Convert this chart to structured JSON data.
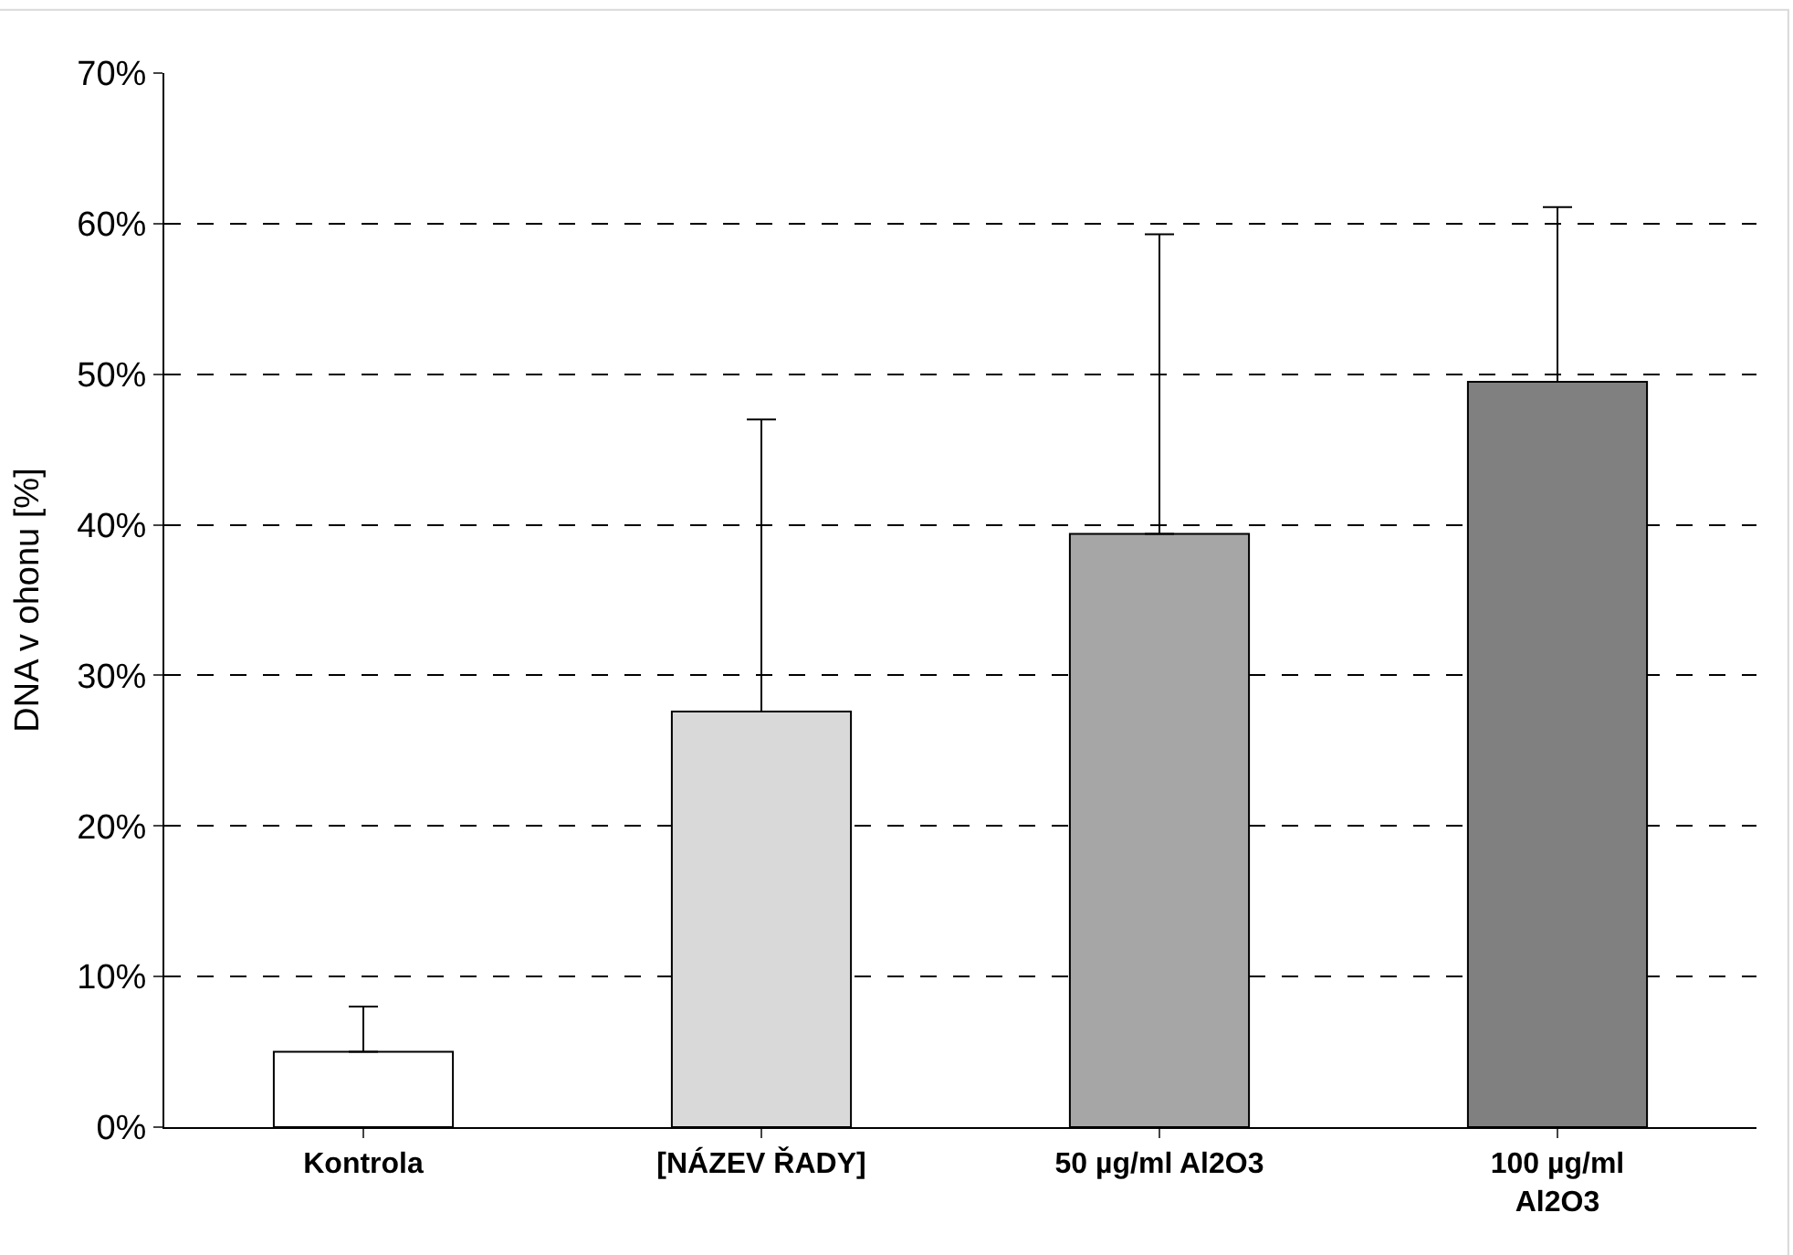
{
  "chart_data": {
    "type": "bar",
    "ylabel": "DNA v ohonu [%]",
    "categories": [
      "Kontrola",
      "[NÁZEV ŘADY]",
      "50 µg/ml Al2O3",
      "100 µg/ml\nAl2O3"
    ],
    "values": [
      5,
      27.6,
      39.4,
      49.5
    ],
    "colors": [
      "#ffffff",
      "#d9d9d9",
      "#a6a6a6",
      "#808080"
    ],
    "errors": [
      [
        5,
        8
      ],
      [
        27.6,
        47
      ],
      [
        39.4,
        59.3
      ],
      [
        49.5,
        61.1
      ]
    ],
    "ylim": [
      0,
      70
    ],
    "yticks": [
      {
        "value": 0,
        "label": "0%"
      },
      {
        "value": 10,
        "label": "10%"
      },
      {
        "value": 20,
        "label": "20%"
      },
      {
        "value": 30,
        "label": "30%"
      },
      {
        "value": 40,
        "label": "40%"
      },
      {
        "value": 50,
        "label": "50%"
      },
      {
        "value": 60,
        "label": "60%"
      },
      {
        "value": 70,
        "label": "70%"
      }
    ],
    "grid": "y",
    "legend": false
  }
}
